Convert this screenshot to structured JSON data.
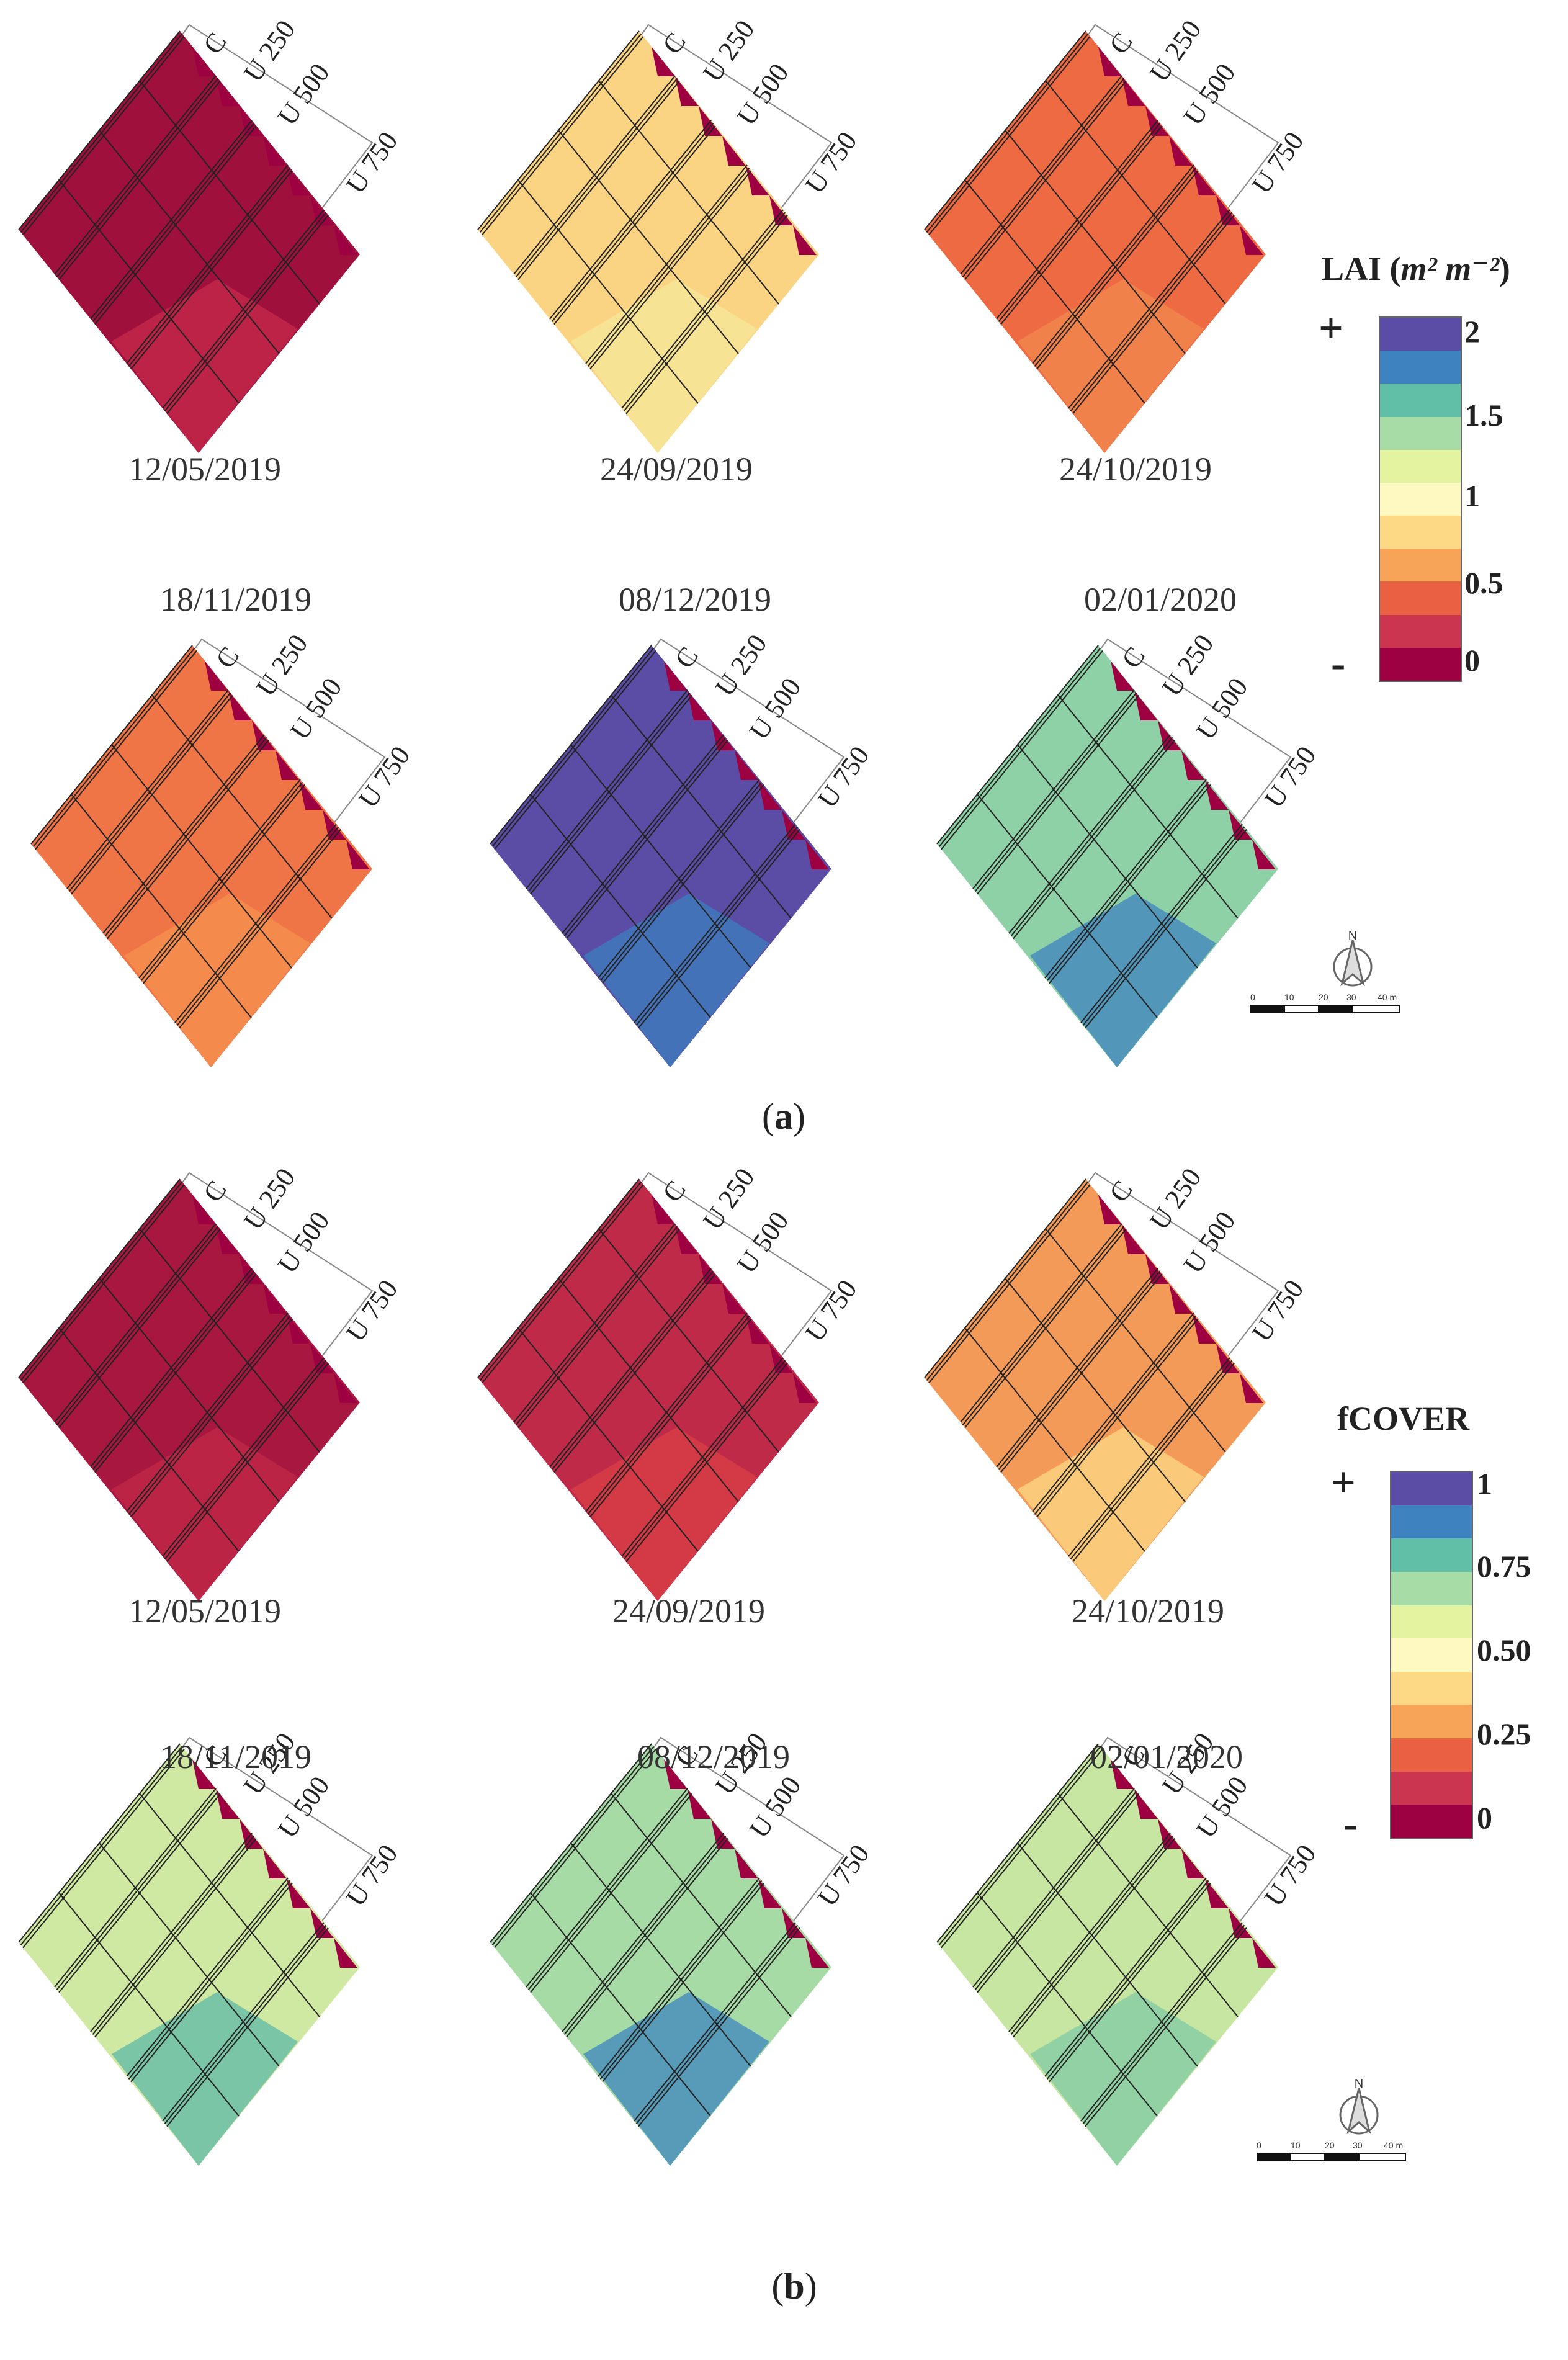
{
  "figure_a": {
    "sublabel_prefix": "(",
    "sublabel_letter": "a",
    "sublabel_suffix": ")",
    "plot_labels": [
      "C",
      "U 250",
      "U 500",
      "U 750"
    ],
    "panels": [
      {
        "date": "12/05/2019",
        "fill": "#a0103d",
        "accent": "#c62a4a"
      },
      {
        "date": "24/09/2019",
        "fill": "#fbd483",
        "accent": "#f6e89a"
      },
      {
        "date": "24/10/2019",
        "fill": "#ee6a43",
        "accent": "#f28a4e"
      },
      {
        "date": "18/11/2019",
        "fill": "#ef7446",
        "accent": "#f59350"
      },
      {
        "date": "08/12/2019",
        "fill": "#5b4ca5",
        "accent": "#3c7fbf"
      },
      {
        "date": "02/01/2020",
        "fill": "#8fd1a6",
        "accent": "#3e82c0"
      }
    ],
    "legend": {
      "title_main": "LAI (",
      "title_unit": "m² m⁻²",
      "title_close": ")",
      "plus": "+",
      "minus": "-",
      "ticks": [
        "2",
        "1.5",
        "1",
        "0.5",
        "0"
      ],
      "colors": [
        "#5b4ca5",
        "#3e82c0",
        "#62bfa7",
        "#a8dca6",
        "#e4f3a0",
        "#fdf9c0",
        "#fdd885",
        "#f7a459",
        "#ea6042",
        "#cc3550",
        "#9e0142"
      ]
    },
    "scale": {
      "north": "N",
      "labels": [
        "0",
        "10",
        "20",
        "30",
        "40 m"
      ]
    }
  },
  "figure_b": {
    "sublabel_prefix": "(",
    "sublabel_letter": "b",
    "sublabel_suffix": ")",
    "plot_labels": [
      "C",
      "U 250",
      "U 500",
      "U 750"
    ],
    "panels": [
      {
        "date": "12/05/2019",
        "fill": "#a8173f",
        "accent": "#c3294a"
      },
      {
        "date": "24/09/2019",
        "fill": "#be2a48",
        "accent": "#d94046"
      },
      {
        "date": "24/10/2019",
        "fill": "#f49a58",
        "accent": "#fdd885"
      },
      {
        "date": "18/11/2019",
        "fill": "#cfe9a2",
        "accent": "#5fb8a8"
      },
      {
        "date": "08/12/2019",
        "fill": "#a6dba6",
        "accent": "#3e85bf"
      },
      {
        "date": "02/01/2020",
        "fill": "#c7e6a1",
        "accent": "#7fcaa6"
      }
    ],
    "legend": {
      "title_main": "fCOVER",
      "plus": "+",
      "minus": "-",
      "ticks": [
        "1",
        "0.75",
        "0.50",
        "0.25",
        "0"
      ],
      "colors": [
        "#5b4ca5",
        "#3e82c0",
        "#62bfa7",
        "#a8dca6",
        "#e4f3a0",
        "#fdf9c0",
        "#fdd885",
        "#f7a459",
        "#ea6042",
        "#cc3550",
        "#9e0142"
      ]
    },
    "scale": {
      "north": "N",
      "labels": [
        "0",
        "10",
        "20",
        "30",
        "40 m"
      ]
    }
  }
}
